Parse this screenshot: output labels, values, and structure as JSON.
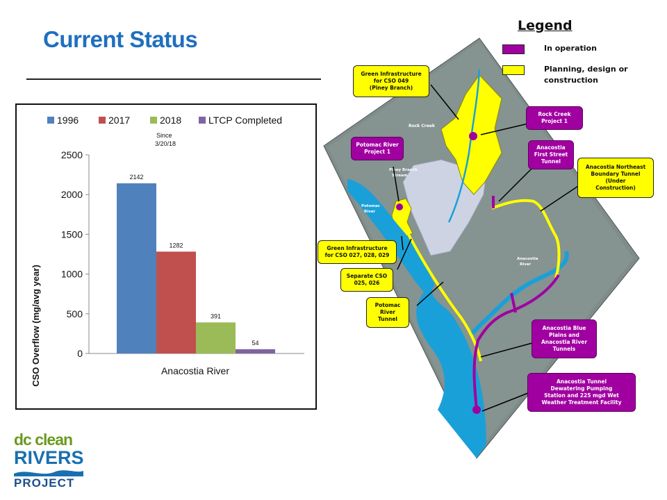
{
  "slide": {
    "title": "Current Status"
  },
  "chart_data": {
    "type": "bar",
    "categories": [
      "Anacostia River"
    ],
    "series": [
      {
        "name": "1996",
        "values": [
          2142
        ],
        "color": "#4f81bd"
      },
      {
        "name": "2017",
        "values": [
          1282
        ],
        "color": "#c0504d"
      },
      {
        "name": "2018",
        "values": [
          391
        ],
        "color": "#9bbb59"
      },
      {
        "name": "LTCP Completed",
        "values": [
          54
        ],
        "color": "#8064a2"
      }
    ],
    "data_labels": [
      "2142",
      "1282",
      "391",
      "54"
    ],
    "legend_note": "Since 3/20/18",
    "legend_note_lines": [
      "Since",
      "3/20/18"
    ],
    "ylabel": "CSO Overflow (mg/avg year)",
    "xlabel": "",
    "ylim": [
      0,
      2500
    ],
    "yticks": [
      0,
      500,
      1000,
      1500,
      2000,
      2500
    ],
    "grid": false,
    "legend_position": "top"
  },
  "map": {
    "legend": {
      "title": "Legend",
      "items": [
        {
          "label": "In operation",
          "color": "#a000a0"
        },
        {
          "label_lines": [
            "Planning, design or",
            "construction"
          ],
          "color": "#ffff00"
        }
      ]
    },
    "labels": {
      "rock_creek": "Rock Creek",
      "piney_branch_stream": [
        "Piney Branch",
        "Stream"
      ],
      "potomac_river": [
        "Potomac",
        "River"
      ],
      "anacostia_river": [
        "Anacostia",
        "River"
      ]
    },
    "callouts": [
      {
        "id": "gi-cso049",
        "style": "yellow",
        "lines": [
          "Green Infrastructure",
          "for CSO 049",
          "(Piney Branch)"
        ]
      },
      {
        "id": "rock-creek-project",
        "style": "purple",
        "lines": [
          "Rock Creek",
          "Project 1"
        ]
      },
      {
        "id": "potomac-project",
        "style": "purple",
        "lines": [
          "Potomac River",
          "Project 1"
        ]
      },
      {
        "id": "anacostia-first-street",
        "style": "purple",
        "lines": [
          "Anacostia",
          "First Street",
          "Tunnel"
        ]
      },
      {
        "id": "anacostia-ne-boundary",
        "style": "yellow",
        "lines": [
          "Anacostia Northeast",
          "Boundary Tunnel",
          "(Under",
          "Construction)"
        ]
      },
      {
        "id": "gi-cso027",
        "style": "yellow",
        "lines": [
          "Green Infrastructure",
          "for CSO 027, 028, 029"
        ]
      },
      {
        "id": "separate-cso",
        "style": "yellow",
        "lines": [
          "Separate CSO",
          "025, 026"
        ]
      },
      {
        "id": "potomac-tunnel",
        "style": "yellow",
        "lines": [
          "Potomac",
          "River",
          "Tunnel"
        ]
      },
      {
        "id": "blue-plains",
        "style": "purple",
        "lines": [
          "Anacostia Blue",
          "Plains and",
          "Anacostia River",
          "Tunnels"
        ]
      },
      {
        "id": "dewatering",
        "style": "purple",
        "lines": [
          "Anacostia Tunnel",
          "Dewatering Pumping",
          "Station and 225 mgd Wet",
          "Weather Treatment Facility"
        ]
      }
    ]
  },
  "logo": {
    "line1": "dc clean",
    "line2": "RIVERS",
    "line3": "PROJECT"
  },
  "colors": {
    "title_blue": "#1f6fbf",
    "in_operation": "#a000a0",
    "planning": "#ffff00",
    "river": "#1aa0d8"
  }
}
